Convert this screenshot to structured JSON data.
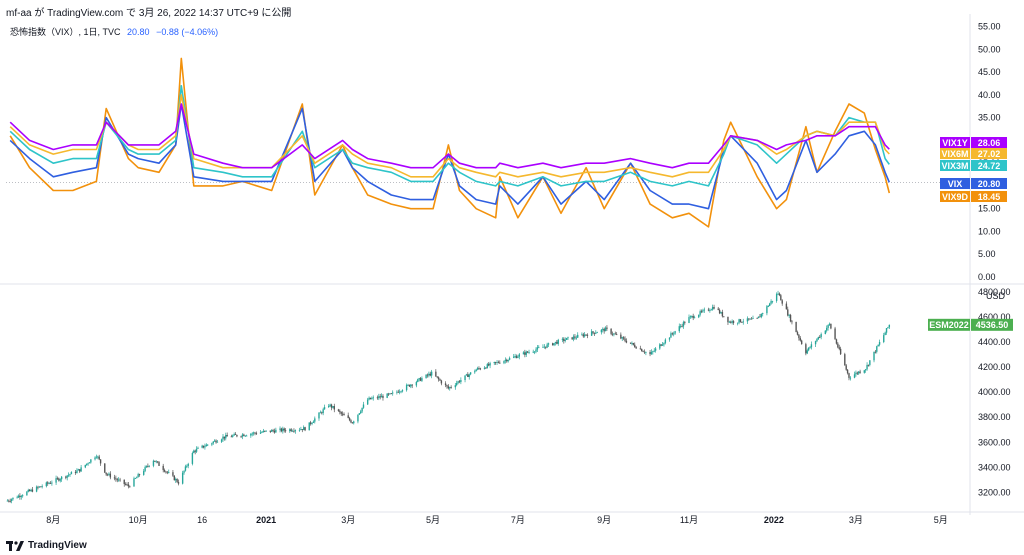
{
  "header": {
    "text": "mf-aa が TradingView.com で 3月 26, 2022 14:37 UTC+9 に公開"
  },
  "legend": {
    "symbol": "恐怖指数（VIX）, 1日, TVC",
    "value": "20.80",
    "change": "−0.88 (−4.06%)"
  },
  "footer": {
    "brand": "TradingView"
  },
  "colors": {
    "VIX1Y": "#aa00ff",
    "VIX6M": "#f5b82e",
    "VIX3M": "#2ec4c9",
    "VIX": "#2f5fe0",
    "VIX9D": "#f2910c",
    "ESM2022": "#4caf50",
    "up": "#26a69a",
    "down": "#555555"
  },
  "chart_data": [
    {
      "type": "line",
      "title": "恐怖指数（VIX）, 1日, TVC",
      "xlabel": "",
      "ylabel": "",
      "x": [
        "2020-07-01",
        "2020-07-15",
        "2020-08-01",
        "2020-08-15",
        "2020-09-01",
        "2020-09-08",
        "2020-09-24",
        "2020-10-01",
        "2020-10-16",
        "2020-10-28",
        "2020-11-01",
        "2020-11-10",
        "2020-12-01",
        "2020-12-15",
        "2021-01-05",
        "2021-01-27",
        "2021-02-05",
        "2021-02-25",
        "2021-03-04",
        "2021-03-15",
        "2021-04-01",
        "2021-04-15",
        "2021-05-01",
        "2021-05-12",
        "2021-05-20",
        "2021-06-01",
        "2021-06-15",
        "2021-06-18",
        "2021-07-01",
        "2021-07-19",
        "2021-08-01",
        "2021-08-19",
        "2021-09-01",
        "2021-09-20",
        "2021-10-04",
        "2021-10-20",
        "2021-11-01",
        "2021-11-15",
        "2021-11-26",
        "2021-12-01",
        "2021-12-20",
        "2022-01-03",
        "2022-01-10",
        "2022-01-24",
        "2022-02-01",
        "2022-02-14",
        "2022-02-24",
        "2022-03-07",
        "2022-03-15",
        "2022-03-22",
        "2022-03-25"
      ],
      "series": [
        {
          "name": "VIX1Y",
          "values": [
            34,
            30,
            28,
            29,
            29,
            34,
            29,
            29,
            29,
            32,
            38,
            27,
            25,
            24,
            24,
            29,
            26,
            30,
            28,
            26,
            25,
            24,
            24,
            27,
            25,
            24,
            24,
            25,
            24,
            25,
            24,
            25,
            25,
            26,
            25,
            24,
            25,
            25,
            29,
            31,
            30,
            28,
            29,
            30,
            31,
            31,
            33,
            33,
            33,
            29,
            28.06
          ]
        },
        {
          "name": "VIX6M",
          "values": [
            33,
            29,
            27,
            28,
            28,
            34,
            29,
            28,
            28,
            31,
            40,
            26,
            24,
            24,
            24,
            31,
            25,
            29,
            27,
            25,
            24,
            22,
            22,
            26,
            24,
            23,
            22,
            23,
            22,
            23,
            22,
            23,
            23,
            24,
            23,
            22,
            23,
            23,
            28,
            31,
            30,
            27,
            28,
            31,
            32,
            31,
            34,
            34,
            34,
            28,
            27.02
          ]
        },
        {
          "name": "VIX3M",
          "values": [
            32,
            28,
            25,
            26,
            26,
            34,
            28,
            27,
            27,
            30,
            42,
            24,
            23,
            22,
            22,
            32,
            24,
            28,
            25,
            24,
            23,
            21,
            21,
            25,
            23,
            21,
            20,
            21,
            20,
            22,
            20,
            21,
            21,
            23,
            21,
            20,
            21,
            20,
            27,
            31,
            29,
            25,
            27,
            31,
            32,
            31,
            35,
            34,
            34,
            26,
            24.72
          ]
        },
        {
          "name": "VIX",
          "values": [
            30,
            26,
            22,
            23,
            24,
            35,
            27,
            26,
            25,
            29,
            38,
            22,
            21,
            21,
            21,
            37,
            21,
            28,
            24,
            21,
            18,
            17,
            17,
            27,
            20,
            17,
            16,
            20,
            16,
            22,
            16,
            21,
            17,
            25,
            19,
            16,
            16,
            15,
            28,
            31,
            25,
            17,
            19,
            30,
            23,
            27,
            31,
            32,
            29,
            23,
            20.8
          ]
        },
        {
          "name": "VIX9D",
          "values": [
            31,
            24,
            19,
            19,
            21,
            37,
            26,
            24,
            23,
            29,
            48,
            20,
            20,
            21,
            19,
            38,
            18,
            29,
            24,
            18,
            16,
            15,
            15,
            29,
            19,
            15,
            13,
            22,
            13,
            22,
            14,
            24,
            15,
            25,
            16,
            13,
            14,
            11,
            30,
            34,
            22,
            15,
            17,
            33,
            23,
            32,
            38,
            36,
            28,
            22,
            18.45
          ]
        }
      ],
      "ylim": [
        0,
        56
      ],
      "y_ticks": [
        "0.00",
        "5.00",
        "10.00",
        "15.00",
        "20.00",
        "25.00",
        "30.00",
        "35.00",
        "40.00",
        "45.00",
        "50.00",
        "55.00"
      ],
      "last_labels": [
        {
          "name": "VIX1Y",
          "value": "28.06"
        },
        {
          "name": "VIX6M",
          "value": "27.02"
        },
        {
          "name": "VIX3M",
          "value": "24.72"
        },
        {
          "name": "VIX",
          "value": "20.80"
        },
        {
          "name": "VIX9D",
          "value": "18.45"
        }
      ],
      "x_ticks": [
        {
          "label": "8月",
          "date": "2020-08-01"
        },
        {
          "label": "10月",
          "date": "2020-10-01"
        },
        {
          "label": "16",
          "date": "2020-11-16"
        },
        {
          "label": "2021",
          "date": "2021-01-01"
        },
        {
          "label": "3月",
          "date": "2021-03-01"
        },
        {
          "label": "5月",
          "date": "2021-05-01"
        },
        {
          "label": "7月",
          "date": "2021-07-01"
        },
        {
          "label": "9月",
          "date": "2021-09-01"
        },
        {
          "label": "11月",
          "date": "2021-11-01"
        },
        {
          "label": "2022",
          "date": "2022-01-01"
        },
        {
          "label": "3月",
          "date": "2022-03-01"
        },
        {
          "label": "5月",
          "date": "2022-05-01"
        }
      ],
      "x_range": [
        "2020-06-28",
        "2022-05-22"
      ],
      "grid": false
    },
    {
      "type": "line",
      "title": "",
      "xlabel": "",
      "ylabel": "USD",
      "x": [
        "2020-06-28",
        "2020-07-15",
        "2020-08-01",
        "2020-08-20",
        "2020-09-01",
        "2020-09-08",
        "2020-09-24",
        "2020-10-12",
        "2020-10-30",
        "2020-11-10",
        "2020-12-01",
        "2021-01-04",
        "2021-01-29",
        "2021-02-15",
        "2021-03-04",
        "2021-03-15",
        "2021-04-01",
        "2021-04-30",
        "2021-05-12",
        "2021-06-01",
        "2021-07-01",
        "2021-08-01",
        "2021-09-02",
        "2021-10-04",
        "2021-11-01",
        "2021-11-19",
        "2021-11-30",
        "2021-12-20",
        "2022-01-04",
        "2022-01-24",
        "2022-02-10",
        "2022-02-24",
        "2022-03-08",
        "2022-03-25"
      ],
      "series": [
        {
          "name": "ESM2022",
          "values": [
            3130,
            3210,
            3290,
            3380,
            3500,
            3350,
            3250,
            3460,
            3280,
            3530,
            3640,
            3690,
            3710,
            3900,
            3760,
            3940,
            3980,
            4150,
            4030,
            4180,
            4290,
            4410,
            4500,
            4300,
            4590,
            4680,
            4560,
            4580,
            4790,
            4320,
            4540,
            4120,
            4190,
            4536.5
          ]
        }
      ],
      "ylim": [
        3100,
        4830
      ],
      "y_ticks": [
        "3200.00",
        "3400.00",
        "3600.00",
        "3800.00",
        "4000.00",
        "4200.00",
        "4400.00",
        "4600.00",
        "4800.00"
      ],
      "last_labels": [
        {
          "name": "ESM2022",
          "value": "4536.50"
        }
      ],
      "unit": "USD",
      "grid": false
    }
  ]
}
